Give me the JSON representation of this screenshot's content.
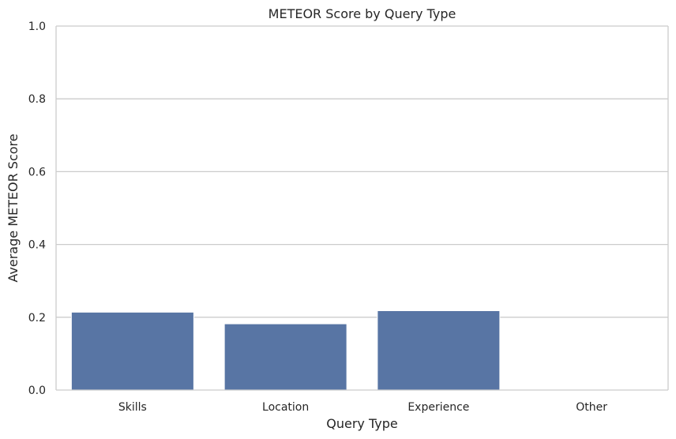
{
  "chart_data": {
    "type": "bar",
    "title": "METEOR Score by Query Type",
    "xlabel": "Query Type",
    "ylabel": "Average METEOR Score",
    "categories": [
      "Skills",
      "Location",
      "Experience",
      "Other"
    ],
    "values": [
      0.214,
      0.182,
      0.218,
      0.0
    ],
    "ylim": [
      0,
      1
    ],
    "yticks": [
      0.0,
      0.2,
      0.4,
      0.6,
      0.8,
      1.0
    ],
    "ytick_labels": [
      "0.0",
      "0.2",
      "0.4",
      "0.6",
      "0.8",
      "1.0"
    ],
    "grid": true,
    "bar_color": "#5875a4"
  }
}
